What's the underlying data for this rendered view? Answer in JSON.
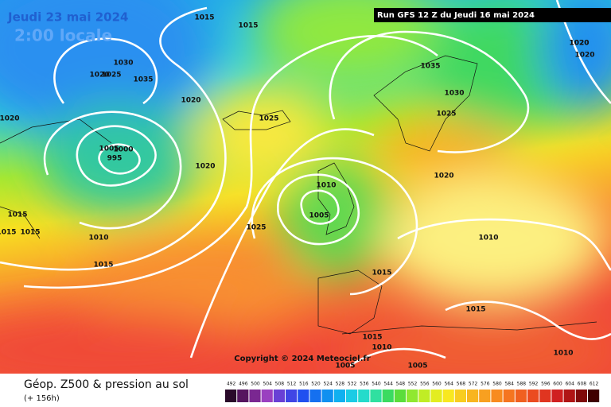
{
  "header": {
    "date": "Jeudi 23 mai 2024",
    "time": "2:00 locale",
    "run": "Run GFS 12 Z du Jeudi 16 mai 2024"
  },
  "copyright": "Copyright © 2024 Meteociel.fr",
  "footer": {
    "title": "Géop. Z500 & pression au sol",
    "lead": "(+ 156h)"
  },
  "isobars": [
    1015,
    1015,
    1030,
    1020,
    1025,
    1035,
    1020,
    1020,
    1005,
    1000,
    995,
    1020,
    1025,
    1015,
    1015,
    1015,
    1010,
    1015,
    1025,
    1035,
    1030,
    1025,
    1020,
    1010,
    1005,
    1020,
    1010,
    1015,
    1015,
    1015,
    1010,
    1005,
    1005,
    1010,
    1020,
    1020
  ],
  "legend": [
    492,
    496,
    500,
    504,
    508,
    512,
    516,
    520,
    524,
    528,
    532,
    536,
    540,
    544,
    548,
    552,
    556,
    560,
    564,
    568,
    572,
    576,
    580,
    584,
    588,
    592,
    596,
    600,
    604,
    608,
    612
  ]
}
